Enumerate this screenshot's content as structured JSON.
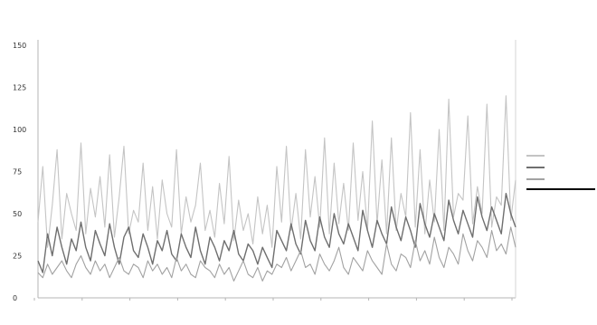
{
  "chart_data": {
    "type": "line",
    "title": "",
    "xlabel": "",
    "ylabel": "",
    "y_ticks": [
      "0",
      "25",
      "50",
      "75",
      "100",
      "125",
      "150"
    ],
    "x_ticks": [
      "",
      "",
      "",
      "",
      "",
      "",
      "",
      "",
      "",
      "",
      ""
    ],
    "ylim": [
      0,
      150
    ],
    "xlim": [
      0,
      100
    ],
    "grid": false,
    "legend_position": "right",
    "colors": {
      "series1": "#c4c4c4",
      "series2": "#6f6f6f",
      "series3": "#a2a2a2",
      "axis": "#b5b5b5"
    },
    "series": [
      {
        "name": "",
        "color": "#c4c4c4",
        "values": [
          45,
          78,
          30,
          55,
          88,
          35,
          62,
          50,
          40,
          92,
          38,
          65,
          48,
          72,
          42,
          85,
          36,
          60,
          90,
          38,
          52,
          45,
          80,
          40,
          66,
          35,
          70,
          50,
          42,
          88,
          38,
          60,
          45,
          55,
          80,
          40,
          52,
          36,
          68,
          44,
          84,
          34,
          58,
          40,
          50,
          32,
          60,
          38,
          55,
          30,
          78,
          45,
          90,
          40,
          62,
          35,
          88,
          48,
          72,
          42,
          95,
          38,
          80,
          44,
          68,
          40,
          92,
          46,
          75,
          40,
          105,
          44,
          82,
          38,
          95,
          40,
          62,
          48,
          110,
          42,
          88,
          38,
          70,
          45,
          100,
          40,
          118,
          48,
          62,
          58,
          108,
          44,
          66,
          50,
          115,
          42,
          60,
          55,
          120,
          46,
          70
        ]
      },
      {
        "name": "",
        "color": "#6f6f6f",
        "values": [
          22,
          15,
          38,
          25,
          42,
          30,
          20,
          35,
          28,
          45,
          30,
          22,
          40,
          32,
          25,
          44,
          30,
          20,
          36,
          42,
          28,
          24,
          38,
          30,
          20,
          34,
          28,
          40,
          26,
          22,
          38,
          30,
          24,
          42,
          28,
          20,
          36,
          30,
          22,
          34,
          28,
          40,
          26,
          22,
          32,
          28,
          20,
          30,
          24,
          18,
          40,
          34,
          28,
          44,
          32,
          26,
          46,
          34,
          28,
          48,
          36,
          30,
          50,
          38,
          32,
          44,
          36,
          28,
          52,
          40,
          30,
          46,
          38,
          32,
          54,
          42,
          34,
          48,
          40,
          30,
          56,
          44,
          36,
          50,
          42,
          34,
          58,
          46,
          38,
          52,
          44,
          36,
          60,
          48,
          40,
          54,
          46,
          38,
          62,
          50,
          42
        ]
      },
      {
        "name": "",
        "color": "#a2a2a2",
        "values": [
          15,
          12,
          20,
          14,
          18,
          22,
          16,
          12,
          20,
          25,
          18,
          14,
          22,
          16,
          20,
          12,
          18,
          24,
          16,
          14,
          20,
          18,
          12,
          22,
          16,
          20,
          14,
          18,
          12,
          24,
          16,
          20,
          14,
          12,
          22,
          18,
          16,
          12,
          20,
          14,
          18,
          10,
          16,
          22,
          14,
          12,
          18,
          10,
          16,
          14,
          20,
          18,
          24,
          16,
          22,
          28,
          18,
          20,
          14,
          26,
          20,
          16,
          22,
          30,
          18,
          14,
          24,
          20,
          16,
          28,
          22,
          18,
          14,
          32,
          20,
          16,
          26,
          24,
          18,
          34,
          22,
          28,
          20,
          36,
          24,
          18,
          30,
          26,
          20,
          38,
          28,
          22,
          34,
          30,
          24,
          40,
          28,
          32,
          26,
          42,
          30
        ]
      }
    ]
  }
}
